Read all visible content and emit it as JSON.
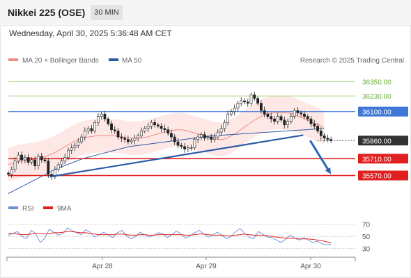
{
  "header": {
    "title": "Nikkei 225 (OSE)",
    "timeframe": "30 MIN",
    "datetime": "Wednesday, April 30, 2025 5:36:48 AM CET"
  },
  "legend": {
    "ma20_label": "MA 20 + Bollinger Bands",
    "ma50_label": "MA 50",
    "credit": "Research © 2025 Trading Central",
    "rsi_label": "RSI",
    "rsi_ma_label": "9MA"
  },
  "colors": {
    "ma20": "#f08a80",
    "ma50": "#2d5aa6",
    "bands_fill": "#fde2e0",
    "resistance_green": "#a9d88a",
    "pivot_blue": "#3d78d8",
    "support_red": "#e02020",
    "arrow": "#2b66b3",
    "rsi": "#6b8dd6",
    "rsi_ma": "#e02020",
    "candle": "#222222"
  },
  "chart_data": {
    "type": "candlestick",
    "title": "Nikkei 225 (OSE)",
    "timeframe": "30 MIN",
    "ylim": [
      35400,
      36450
    ],
    "x_ticks": [
      "Apr 28",
      "Apr 29",
      "Apr 30"
    ],
    "levels": [
      {
        "value": 36350.0,
        "label": "36350.00",
        "kind": "resistance"
      },
      {
        "value": 36230.0,
        "label": "36230.00",
        "kind": "resistance"
      },
      {
        "value": 36100.0,
        "label": "36100.00",
        "kind": "pivot"
      },
      {
        "value": 35860.0,
        "label": "35860.00",
        "kind": "last"
      },
      {
        "value": 35710.0,
        "label": "35710.00",
        "kind": "support"
      },
      {
        "value": 35570.0,
        "label": "35570.00",
        "kind": "support"
      }
    ],
    "closes": [
      35580,
      35620,
      35690,
      35740,
      35700,
      35720,
      35680,
      35700,
      35650,
      35730,
      35700,
      35690,
      35580,
      35560,
      35620,
      35660,
      35690,
      35720,
      35780,
      35800,
      35820,
      35850,
      35890,
      35940,
      35960,
      35940,
      36010,
      36060,
      36080,
      36040,
      36000,
      35950,
      35940,
      35890,
      35880,
      35870,
      35850,
      35860,
      35880,
      35900,
      35940,
      35960,
      35980,
      36010,
      35990,
      35980,
      35960,
      35950,
      35920,
      35890,
      35850,
      35820,
      35810,
      35790,
      35800,
      35800,
      35870,
      35890,
      35910,
      35880,
      35890,
      35870,
      35890,
      35930,
      35960,
      36010,
      36080,
      36100,
      36130,
      36170,
      36190,
      36180,
      36170,
      36240,
      36210,
      36170,
      36110,
      36080,
      36060,
      36040,
      36020,
      36060,
      36030,
      35990,
      36020,
      36060,
      36110,
      36090,
      36080,
      36060,
      36040,
      36000,
      35980,
      35940,
      35900,
      35880,
      35870,
      35860
    ],
    "ma20": [
      35660,
      35670,
      35680,
      35690,
      35695,
      35700,
      35705,
      35710,
      35720,
      35730,
      35745,
      35760,
      35780,
      35800,
      35820,
      35840,
      35860,
      35875,
      35885,
      35890,
      35895,
      35900,
      35900,
      35900,
      35900,
      35900,
      35895,
      35890,
      35885,
      35880,
      35880,
      35880,
      35885,
      35890,
      35900,
      35910,
      35920,
      35930,
      35940,
      35945,
      35950,
      35950,
      35945,
      35935,
      35925,
      35915,
      35905,
      35895,
      35885,
      35875,
      35870,
      35870,
      35880,
      35900,
      35920,
      35945,
      35970,
      35995,
      36020,
      36040,
      36060,
      36075,
      36085,
      36090,
      36095,
      36095,
      36090,
      36085,
      36075,
      36060,
      36045,
      36030,
      36015,
      36000,
      35985,
      35970
    ],
    "bb_width": 140,
    "ma50": [
      35420,
      35460,
      35500,
      35540,
      35580,
      35620,
      35650,
      35680,
      35710,
      35730,
      35750,
      35770,
      35790,
      35810,
      35820,
      35830,
      35840,
      35850,
      35860,
      35870,
      35880,
      35890,
      35900,
      35905,
      35910,
      35915,
      35920,
      35925,
      35930,
      35935,
      35940,
      35945,
      35950,
      35955,
      35960
    ],
    "trendline": {
      "from": [
        0.12,
        35560
      ],
      "to": [
        0.85,
        35905
      ]
    },
    "projection": {
      "from": [
        0.87,
        35860
      ],
      "to": [
        0.93,
        35580
      ]
    },
    "rsi": {
      "ylim": [
        25,
        80
      ],
      "ticks": [
        70,
        50,
        30
      ],
      "rsi": [
        52,
        55,
        58,
        50,
        46,
        60,
        55,
        40,
        47,
        62,
        57,
        52,
        55,
        64,
        60,
        56,
        53,
        61,
        57,
        49,
        53,
        57,
        52,
        48,
        56,
        60,
        51,
        46,
        50,
        57,
        53,
        49,
        52,
        56,
        55,
        48,
        53,
        59,
        54,
        47,
        51,
        56,
        60,
        54,
        49,
        53,
        57,
        52,
        46,
        50,
        58,
        63,
        55,
        49,
        46,
        58,
        54,
        49,
        48,
        44,
        40,
        45,
        52,
        47,
        44,
        48,
        44,
        40,
        42,
        38,
        36,
        37
      ],
      "ma9": [
        55,
        55,
        54,
        53,
        53,
        54,
        55,
        55,
        54,
        55,
        56,
        56,
        57,
        58,
        58,
        57,
        56,
        56,
        55,
        54,
        53,
        53,
        53,
        53,
        54,
        54,
        53,
        52,
        52,
        53,
        53,
        52,
        52,
        53,
        53,
        53,
        53,
        53,
        53,
        52,
        52,
        53,
        54,
        54,
        53,
        52,
        52,
        52,
        51,
        51,
        52,
        53,
        54,
        53,
        52,
        52,
        52,
        51,
        50,
        49,
        48,
        47,
        47,
        47,
        46,
        46,
        46,
        45,
        44,
        43,
        41,
        40
      ]
    }
  }
}
